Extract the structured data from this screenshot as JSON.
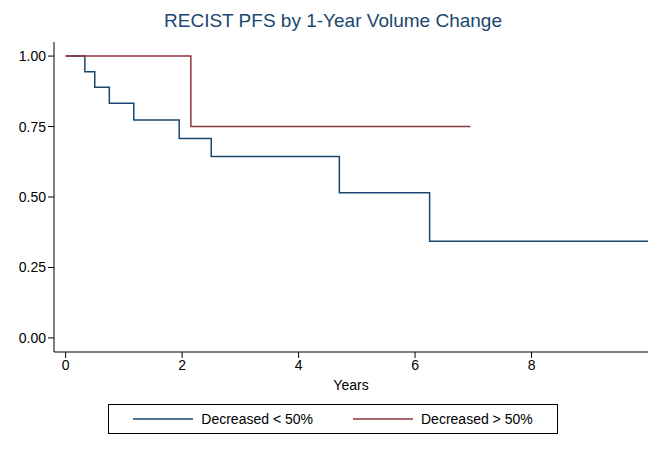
{
  "chart_data": {
    "type": "line",
    "title": "RECIST PFS by 1-Year Volume Change",
    "x_label": "Years",
    "xlim": [
      -0.2,
      10.0
    ],
    "xticks": [
      0,
      2,
      4,
      6,
      8
    ],
    "ylim": [
      -0.05,
      1.05
    ],
    "yticks": [
      {
        "value": 0,
        "label": "0.00"
      },
      {
        "value": 0.25,
        "label": "0.25"
      },
      {
        "value": 0.5,
        "label": "0.50"
      },
      {
        "value": 0.75,
        "label": "0.75"
      },
      {
        "value": 1,
        "label": "1.00"
      }
    ],
    "grid": false,
    "legend": "bottom",
    "line_style": "step",
    "series": [
      {
        "name": "Decreased < 50%",
        "color": "#1a476f",
        "x": [
          0,
          0.33,
          0.5,
          0.75,
          1.17,
          1.95,
          2.5,
          4.7,
          6.25,
          10.0
        ],
        "values": [
          1.0,
          0.944,
          0.889,
          0.833,
          0.773,
          0.708,
          0.644,
          0.515,
          0.343,
          0.343
        ]
      },
      {
        "name": "Decreased > 50%",
        "color": "#90353b",
        "x": [
          0,
          2.15,
          6.95
        ],
        "values": [
          1.0,
          0.75,
          0.75
        ]
      }
    ]
  }
}
